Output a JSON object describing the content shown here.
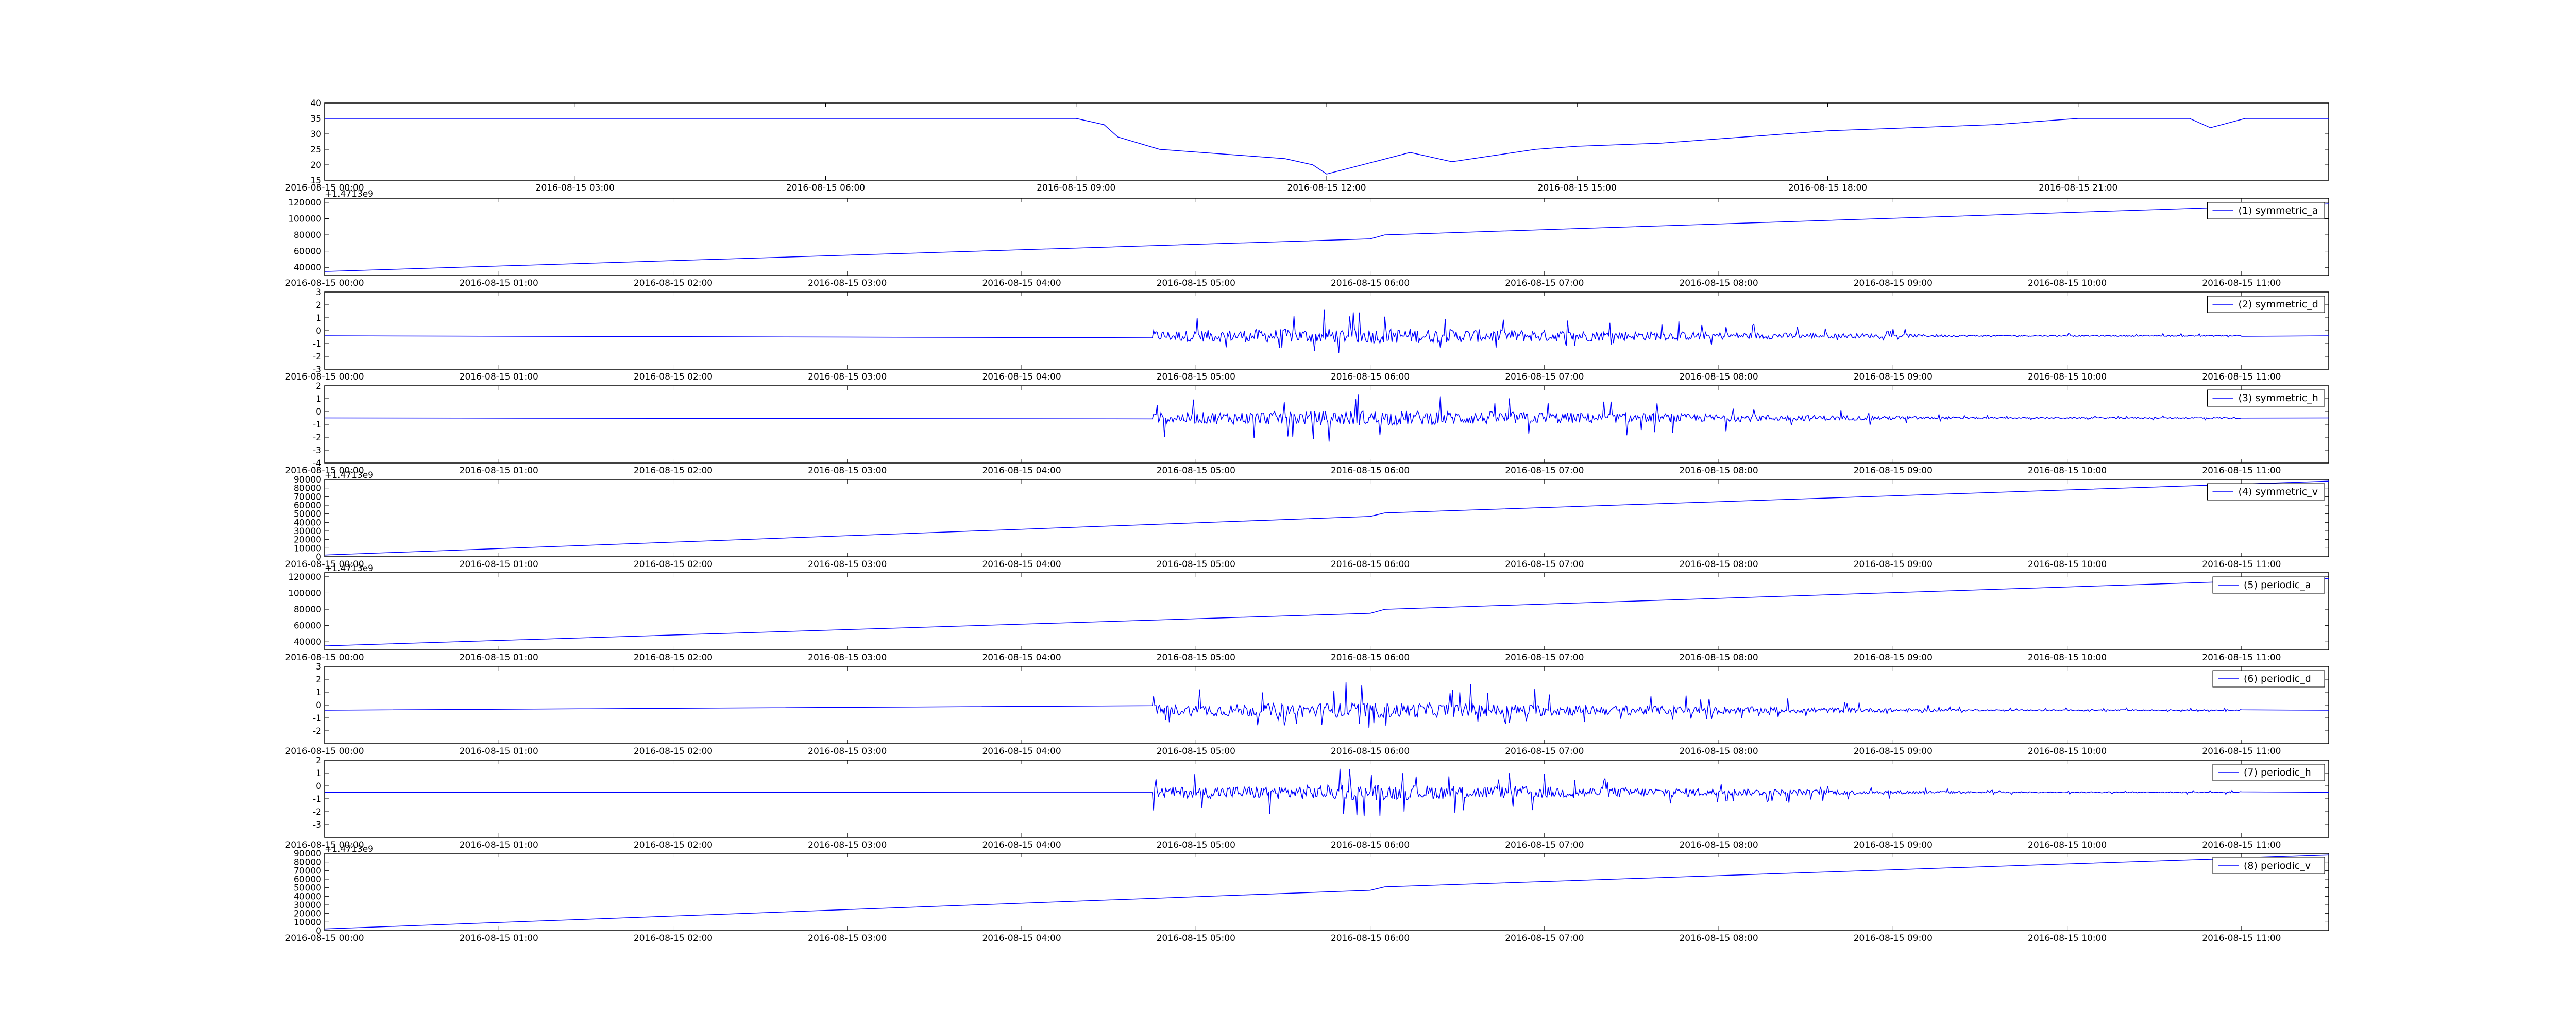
{
  "figure": {
    "background": "#ffffff",
    "line_color": "#0000ff",
    "frame_color": "#000000"
  },
  "chart_data": [
    {
      "type": "line",
      "id": "p0",
      "legend": "",
      "x_start": "2016-08-15 00:00",
      "x_end": "2016-08-16 00:00",
      "xticks": [
        "2016-08-15 00:00",
        "2016-08-15 03:00",
        "2016-08-15 06:00",
        "2016-08-15 09:00",
        "2016-08-15 12:00",
        "2016-08-15 15:00",
        "2016-08-15 18:00",
        "2016-08-15 21:00"
      ],
      "ylim": [
        15,
        40
      ],
      "yticks": [
        15,
        20,
        25,
        30,
        35,
        40
      ],
      "offset_text": "",
      "series": [
        {
          "x": [
            "2016-08-15 00:00",
            "2016-08-15 09:00",
            "2016-08-15 09:20",
            "2016-08-15 09:30",
            "2016-08-15 09:45",
            "2016-08-15 10:00",
            "2016-08-15 10:30",
            "2016-08-15 11:00",
            "2016-08-15 11:30",
            "2016-08-15 11:50",
            "2016-08-15 12:00",
            "2016-08-15 13:00",
            "2016-08-15 13:30",
            "2016-08-15 14:00",
            "2016-08-15 14:30",
            "2016-08-15 15:00",
            "2016-08-15 16:00",
            "2016-08-15 17:00",
            "2016-08-15 18:00",
            "2016-08-15 19:00",
            "2016-08-15 20:00",
            "2016-08-15 21:00",
            "2016-08-15 21:30",
            "2016-08-15 22:00",
            "2016-08-15 22:20",
            "2016-08-15 22:35",
            "2016-08-15 23:00",
            "2016-08-16 00:00"
          ],
          "y": [
            35,
            35,
            33,
            29,
            27,
            25,
            24,
            23,
            22,
            20,
            17,
            24,
            21,
            23,
            25,
            26,
            27,
            29,
            31,
            32,
            33,
            35,
            35,
            35,
            35,
            32,
            35,
            35
          ]
        }
      ]
    },
    {
      "type": "line",
      "id": "p1",
      "legend": "(1) symmetric_a",
      "x_start": "2016-08-15 00:00",
      "x_end": "2016-08-15 11:30",
      "xticks": [
        "2016-08-15 00:00",
        "2016-08-15 01:00",
        "2016-08-15 02:00",
        "2016-08-15 03:00",
        "2016-08-15 04:00",
        "2016-08-15 05:00",
        "2016-08-15 06:00",
        "2016-08-15 07:00",
        "2016-08-15 08:00",
        "2016-08-15 09:00",
        "2016-08-15 10:00",
        "2016-08-15 11:00"
      ],
      "ylim": [
        30000,
        125000
      ],
      "yticks": [
        40000,
        60000,
        80000,
        100000,
        120000
      ],
      "offset_text": "+1.4713e9",
      "series": [
        {
          "x": [
            "2016-08-15 00:00",
            "2016-08-15 06:00",
            "2016-08-15 06:05",
            "2016-08-15 11:30"
          ],
          "y": [
            35000,
            75000,
            80000,
            118000
          ]
        }
      ]
    },
    {
      "type": "line",
      "id": "p2",
      "legend": "(2) symmetric_d",
      "x_start": "2016-08-15 00:00",
      "x_end": "2016-08-15 11:30",
      "xticks": [
        "2016-08-15 00:00",
        "2016-08-15 01:00",
        "2016-08-15 02:00",
        "2016-08-15 03:00",
        "2016-08-15 04:00",
        "2016-08-15 05:00",
        "2016-08-15 06:00",
        "2016-08-15 07:00",
        "2016-08-15 08:00",
        "2016-08-15 09:00",
        "2016-08-15 10:00",
        "2016-08-15 11:00"
      ],
      "ylim": [
        -3,
        3
      ],
      "yticks": [
        -3,
        -2,
        -1,
        0,
        1,
        2,
        3
      ],
      "offset_text": "",
      "series": [
        {
          "x": [
            "2016-08-15 00:00",
            "2016-08-15 11:30"
          ],
          "y": [
            -0.4,
            -0.4
          ],
          "noise": {
            "x_from": "2016-08-15 04:45",
            "x_to": "2016-08-15 11:00",
            "peak_x": "2016-08-15 06:00",
            "min": -1.8,
            "max": 2.0
          }
        }
      ]
    },
    {
      "type": "line",
      "id": "p3",
      "legend": "(3) symmetric_h",
      "x_start": "2016-08-15 00:00",
      "x_end": "2016-08-15 11:30",
      "xticks": [
        "2016-08-15 00:00",
        "2016-08-15 01:00",
        "2016-08-15 02:00",
        "2016-08-15 03:00",
        "2016-08-15 04:00",
        "2016-08-15 05:00",
        "2016-08-15 06:00",
        "2016-08-15 07:00",
        "2016-08-15 08:00",
        "2016-08-15 09:00",
        "2016-08-15 10:00",
        "2016-08-15 11:00"
      ],
      "ylim": [
        -4,
        2
      ],
      "yticks": [
        -4,
        -3,
        -2,
        -1,
        0,
        1,
        2
      ],
      "offset_text": "",
      "series": [
        {
          "x": [
            "2016-08-15 00:00",
            "2016-08-15 11:30"
          ],
          "y": [
            -0.5,
            -0.5
          ],
          "noise": {
            "x_from": "2016-08-15 04:45",
            "x_to": "2016-08-15 11:00",
            "peak_x": "2016-08-15 06:00",
            "min": -2.7,
            "max": 1.5
          }
        }
      ]
    },
    {
      "type": "line",
      "id": "p4",
      "legend": "(4) symmetric_v",
      "x_start": "2016-08-15 00:00",
      "x_end": "2016-08-15 11:30",
      "xticks": [
        "2016-08-15 00:00",
        "2016-08-15 01:00",
        "2016-08-15 02:00",
        "2016-08-15 03:00",
        "2016-08-15 04:00",
        "2016-08-15 05:00",
        "2016-08-15 06:00",
        "2016-08-15 07:00",
        "2016-08-15 08:00",
        "2016-08-15 09:00",
        "2016-08-15 10:00",
        "2016-08-15 11:00"
      ],
      "ylim": [
        0,
        90000
      ],
      "yticks": [
        0,
        10000,
        20000,
        30000,
        40000,
        50000,
        60000,
        70000,
        80000,
        90000
      ],
      "offset_text": "+1.4713e9",
      "series": [
        {
          "x": [
            "2016-08-15 00:00",
            "2016-08-15 06:00",
            "2016-08-15 06:05",
            "2016-08-15 11:30"
          ],
          "y": [
            2000,
            47000,
            51000,
            88000
          ]
        }
      ]
    },
    {
      "type": "line",
      "id": "p5",
      "legend": "(5) periodic_a",
      "x_start": "2016-08-15 00:00",
      "x_end": "2016-08-15 11:30",
      "xticks": [
        "2016-08-15 00:00",
        "2016-08-15 01:00",
        "2016-08-15 02:00",
        "2016-08-15 03:00",
        "2016-08-15 04:00",
        "2016-08-15 05:00",
        "2016-08-15 06:00",
        "2016-08-15 07:00",
        "2016-08-15 08:00",
        "2016-08-15 09:00",
        "2016-08-15 10:00",
        "2016-08-15 11:00"
      ],
      "ylim": [
        30000,
        125000
      ],
      "yticks": [
        40000,
        60000,
        80000,
        100000,
        120000
      ],
      "offset_text": "+1.4713e9",
      "series": [
        {
          "x": [
            "2016-08-15 00:00",
            "2016-08-15 06:00",
            "2016-08-15 06:05",
            "2016-08-15 11:30"
          ],
          "y": [
            35000,
            75000,
            80000,
            118000
          ]
        }
      ]
    },
    {
      "type": "line",
      "id": "p6",
      "legend": "(6) periodic_d",
      "x_start": "2016-08-15 00:00",
      "x_end": "2016-08-15 11:30",
      "xticks": [
        "2016-08-15 00:00",
        "2016-08-15 01:00",
        "2016-08-15 02:00",
        "2016-08-15 03:00",
        "2016-08-15 04:00",
        "2016-08-15 05:00",
        "2016-08-15 06:00",
        "2016-08-15 07:00",
        "2016-08-15 08:00",
        "2016-08-15 09:00",
        "2016-08-15 10:00",
        "2016-08-15 11:00"
      ],
      "ylim": [
        -3,
        3
      ],
      "yticks": [
        -2,
        -1,
        0,
        1,
        2,
        3
      ],
      "offset_text": "",
      "series": [
        {
          "x": [
            "2016-08-15 00:00",
            "2016-08-15 11:30"
          ],
          "y": [
            -0.4,
            -0.4
          ],
          "noise": {
            "x_from": "2016-08-15 04:45",
            "x_to": "2016-08-15 11:00",
            "peak_x": "2016-08-15 06:00",
            "min": -1.8,
            "max": 2.0
          }
        }
      ]
    },
    {
      "type": "line",
      "id": "p7",
      "legend": "(7) periodic_h",
      "x_start": "2016-08-15 00:00",
      "x_end": "2016-08-15 11:30",
      "xticks": [
        "2016-08-15 00:00",
        "2016-08-15 01:00",
        "2016-08-15 02:00",
        "2016-08-15 03:00",
        "2016-08-15 04:00",
        "2016-08-15 05:00",
        "2016-08-15 06:00",
        "2016-08-15 07:00",
        "2016-08-15 08:00",
        "2016-08-15 09:00",
        "2016-08-15 10:00",
        "2016-08-15 11:00"
      ],
      "ylim": [
        -4,
        2
      ],
      "yticks": [
        -3,
        -2,
        -1,
        0,
        1,
        2
      ],
      "offset_text": "",
      "series": [
        {
          "x": [
            "2016-08-15 00:00",
            "2016-08-15 11:30"
          ],
          "y": [
            -0.5,
            -0.5
          ],
          "noise": {
            "x_from": "2016-08-15 04:45",
            "x_to": "2016-08-15 11:00",
            "peak_x": "2016-08-15 06:00",
            "min": -2.7,
            "max": 1.5
          }
        }
      ]
    },
    {
      "type": "line",
      "id": "p8",
      "legend": "(8) periodic_v",
      "x_start": "2016-08-15 00:00",
      "x_end": "2016-08-15 11:30",
      "xticks": [
        "2016-08-15 00:00",
        "2016-08-15 01:00",
        "2016-08-15 02:00",
        "2016-08-15 03:00",
        "2016-08-15 04:00",
        "2016-08-15 05:00",
        "2016-08-15 06:00",
        "2016-08-15 07:00",
        "2016-08-15 08:00",
        "2016-08-15 09:00",
        "2016-08-15 10:00",
        "2016-08-15 11:00"
      ],
      "ylim": [
        0,
        90000
      ],
      "yticks": [
        0,
        10000,
        20000,
        30000,
        40000,
        50000,
        60000,
        70000,
        80000,
        90000
      ],
      "offset_text": "+1.4713e9",
      "series": [
        {
          "x": [
            "2016-08-15 00:00",
            "2016-08-15 06:00",
            "2016-08-15 06:05",
            "2016-08-15 11:30"
          ],
          "y": [
            2000,
            47000,
            51000,
            88000
          ]
        }
      ]
    }
  ]
}
